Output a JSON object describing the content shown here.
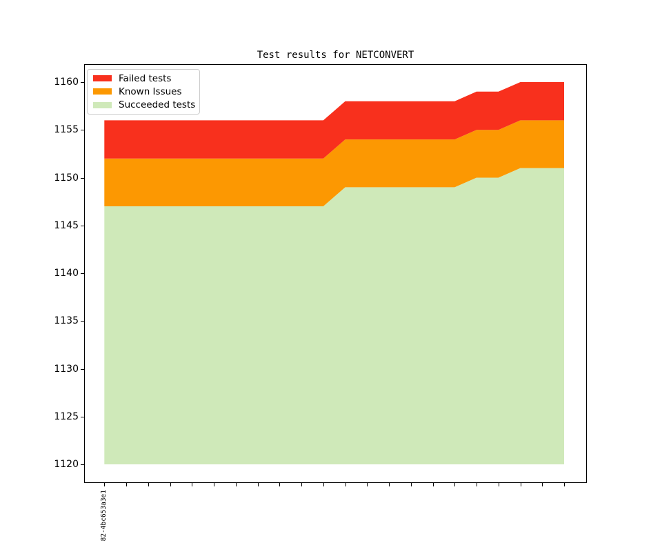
{
  "chart_data": {
    "type": "area",
    "title": "Test results for NETCONVERT",
    "xlabel": "",
    "ylabel": "",
    "grid": false,
    "legend_position": "upper left",
    "baseline": 1120,
    "yticks": [
      1120,
      1125,
      1130,
      1135,
      1140,
      1145,
      1150,
      1155,
      1160
    ],
    "ylim": [
      1118,
      1162
    ],
    "x_labels": [
      "82-4bc653a3e1",
      "",
      "",
      "",
      "",
      "",
      "",
      "",
      "",
      "",
      "",
      "",
      "",
      "",
      "",
      "",
      "",
      "",
      "",
      "",
      "",
      ""
    ],
    "series": [
      {
        "name": "Failed tests",
        "color": "#f8301d",
        "cumulative_top": [
          1156,
          1156,
          1156,
          1156,
          1156,
          1156,
          1156,
          1156,
          1156,
          1156,
          1156,
          1158,
          1158,
          1158,
          1158,
          1158,
          1158,
          1159,
          1159,
          1160,
          1160,
          1160
        ],
        "layer_values": [
          4,
          4,
          4,
          4,
          4,
          4,
          4,
          4,
          4,
          4,
          4,
          4,
          4,
          4,
          4,
          4,
          4,
          4,
          4,
          4,
          4,
          4
        ]
      },
      {
        "name": "Known Issues",
        "color": "#fc9802",
        "cumulative_top": [
          1152,
          1152,
          1152,
          1152,
          1152,
          1152,
          1152,
          1152,
          1152,
          1152,
          1152,
          1154,
          1154,
          1154,
          1154,
          1154,
          1154,
          1155,
          1155,
          1156,
          1156,
          1156
        ],
        "layer_values": [
          5,
          5,
          5,
          5,
          5,
          5,
          5,
          5,
          5,
          5,
          5,
          5,
          5,
          5,
          5,
          5,
          5,
          5,
          5,
          5,
          5,
          5
        ]
      },
      {
        "name": "Succeeded tests",
        "color": "#cfe9b9",
        "cumulative_top": [
          1147,
          1147,
          1147,
          1147,
          1147,
          1147,
          1147,
          1147,
          1147,
          1147,
          1147,
          1149,
          1149,
          1149,
          1149,
          1149,
          1149,
          1150,
          1150,
          1151,
          1151,
          1151
        ],
        "layer_values": [
          27,
          27,
          27,
          27,
          27,
          27,
          27,
          27,
          27,
          27,
          27,
          29,
          29,
          29,
          29,
          29,
          29,
          30,
          30,
          31,
          31,
          31
        ]
      }
    ]
  }
}
